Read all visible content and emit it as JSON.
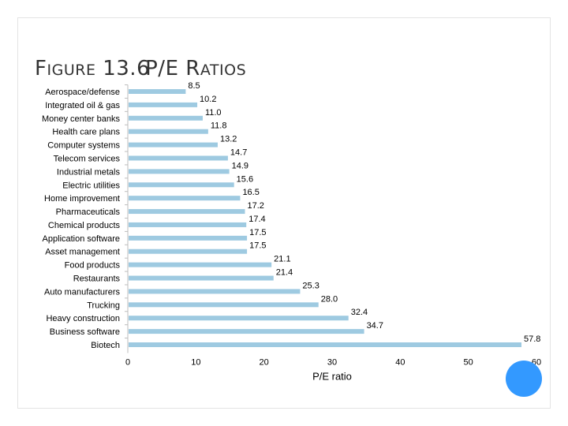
{
  "slide": {
    "title_figure": "Figure",
    "title_number": "13.6",
    "title_text": "P/E Ratios"
  },
  "colors": {
    "bar": "#a6cee3",
    "bar_fill": "#9ecae1",
    "accent_circle": "#3399ff"
  },
  "chart_data": {
    "type": "bar",
    "orientation": "horizontal",
    "categories": [
      "Aerospace/defense",
      "Integrated oil & gas",
      "Money center banks",
      "Health care plans",
      "Computer systems",
      "Telecom services",
      "Industrial metals",
      "Electric utilities",
      "Home improvement",
      "Pharmaceuticals",
      "Chemical products",
      "Application software",
      "Asset management",
      "Food products",
      "Restaurants",
      "Auto manufacturers",
      "Trucking",
      "Heavy construction",
      "Business software",
      "Biotech"
    ],
    "values": [
      8.5,
      10.2,
      11.0,
      11.8,
      13.2,
      14.7,
      14.9,
      15.6,
      16.5,
      17.2,
      17.4,
      17.5,
      17.5,
      21.1,
      21.4,
      25.3,
      28.0,
      32.4,
      34.7,
      57.8
    ],
    "value_labels": [
      "8.5",
      "10.2",
      "11.0",
      "11.8",
      "13.2",
      "14.7",
      "14.9",
      "15.6",
      "16.5",
      "17.2",
      "17.4",
      "17.5",
      "17.5",
      "21.1",
      "21.4",
      "25.3",
      "28.0",
      "32.4",
      "34.7",
      "57.8"
    ],
    "xlabel": "P/E ratio",
    "ylabel": "",
    "xlim": [
      0,
      60
    ],
    "xticks": [
      0,
      10,
      20,
      30,
      40,
      50,
      60
    ],
    "grid": false,
    "legend": "none"
  }
}
